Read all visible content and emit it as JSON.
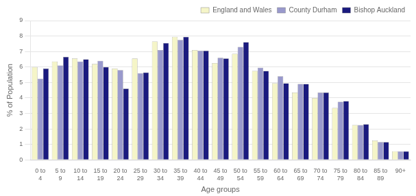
{
  "chart_data": {
    "type": "bar",
    "xlabel": "Age groups",
    "ylabel": "% of Population",
    "categories": [
      "0 to\n4",
      "5 to\n9",
      "10 to\n14",
      "15 to\n19",
      "20 to\n24",
      "25 to\n29",
      "30 to\n34",
      "35 to\n39",
      "40 to\n44",
      "45 to\n49",
      "50 to\n54",
      "55 to\n59",
      "60 to\n64",
      "65 to\n69",
      "70 to\n74",
      "75 to\n79",
      "80 to\n84",
      "85 to\n89",
      "90+"
    ],
    "series": [
      {
        "name": "England and Wales",
        "color": "#F5F5C8",
        "values": [
          6.0,
          6.35,
          6.55,
          6.2,
          5.9,
          6.55,
          7.65,
          7.95,
          7.1,
          6.25,
          6.85,
          5.75,
          4.95,
          4.35,
          4.0,
          3.35,
          2.25,
          1.25,
          0.55
        ]
      },
      {
        "name": "County Durham",
        "color": "#9999CC",
        "values": [
          5.25,
          6.1,
          6.35,
          6.4,
          5.8,
          5.6,
          7.1,
          7.75,
          7.05,
          6.6,
          7.3,
          5.95,
          5.4,
          4.9,
          4.35,
          3.75,
          2.25,
          1.15,
          0.55
        ]
      },
      {
        "name": "Bishop Auckland",
        "color": "#1A1A7E",
        "values": [
          5.9,
          6.65,
          6.5,
          6.0,
          4.6,
          5.65,
          7.55,
          7.95,
          7.05,
          6.55,
          7.6,
          5.75,
          4.95,
          4.9,
          4.35,
          3.8,
          2.3,
          1.15,
          0.55
        ]
      }
    ],
    "ylim": [
      0,
      9
    ],
    "yticks": [
      0,
      1,
      2,
      3,
      4,
      5,
      6,
      7,
      8,
      9
    ],
    "grid": true,
    "legend": "upper right"
  }
}
